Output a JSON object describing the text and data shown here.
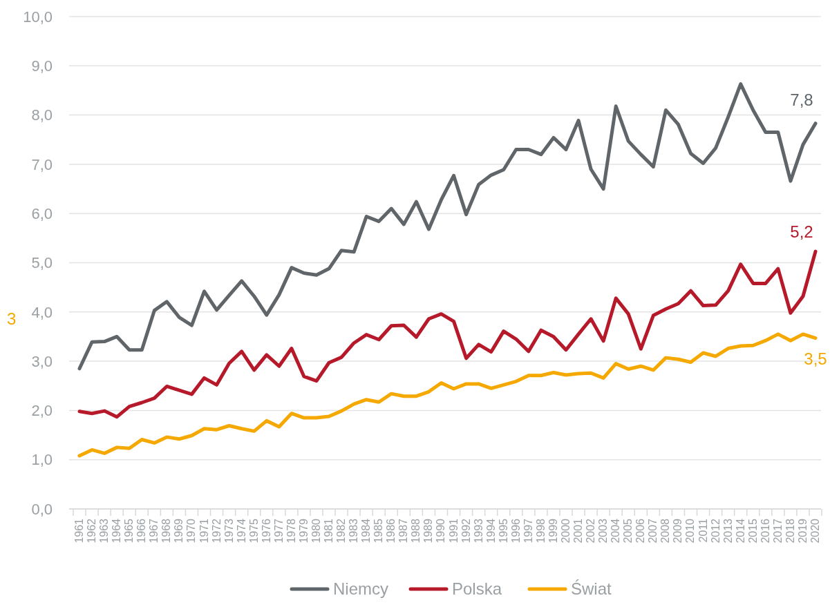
{
  "chart_data": {
    "type": "line",
    "categories": [
      "1961",
      "1962",
      "1963",
      "1964",
      "1965",
      "1966",
      "1967",
      "1968",
      "1969",
      "1970",
      "1971",
      "1972",
      "1973",
      "1974",
      "1975",
      "1976",
      "1977",
      "1978",
      "1979",
      "1980",
      "1981",
      "1982",
      "1983",
      "1984",
      "1985",
      "1986",
      "1987",
      "1988",
      "1989",
      "1990",
      "1991",
      "1992",
      "1993",
      "1994",
      "1995",
      "1996",
      "1997",
      "1998",
      "1999",
      "2000",
      "2001",
      "2002",
      "2003",
      "2004",
      "2005",
      "2006",
      "2007",
      "2008",
      "2009",
      "2010",
      "2011",
      "2012",
      "2013",
      "2014",
      "2015",
      "2016",
      "2017",
      "2018",
      "2019",
      "2020"
    ],
    "series": [
      {
        "name": "Niemcy",
        "color": "#5f6569",
        "values": [
          2.85,
          3.39,
          3.4,
          3.5,
          3.23,
          3.23,
          4.03,
          4.21,
          3.89,
          3.73,
          4.42,
          4.04,
          4.34,
          4.63,
          4.32,
          3.94,
          4.35,
          4.9,
          4.79,
          4.75,
          4.88,
          5.25,
          5.22,
          5.94,
          5.84,
          6.1,
          5.78,
          6.24,
          5.68,
          6.28,
          6.77,
          5.98,
          6.59,
          6.78,
          6.89,
          7.3,
          7.3,
          7.2,
          7.54,
          7.3,
          7.89,
          6.9,
          6.5,
          8.18,
          7.47,
          7.2,
          6.95,
          8.1,
          7.81,
          7.22,
          7.02,
          7.33,
          7.96,
          8.63,
          8.1,
          7.65,
          7.65,
          6.66,
          7.4,
          7.83
        ],
        "value_labels": [
          null,
          null,
          null,
          null,
          null,
          null,
          null,
          null,
          null,
          null,
          null,
          null,
          null,
          null,
          null,
          null,
          null,
          null,
          null,
          null,
          null,
          null,
          null,
          null,
          null,
          null,
          null,
          null,
          null,
          null,
          null,
          null,
          null,
          null,
          null,
          null,
          null,
          null,
          null,
          null,
          null,
          null,
          null,
          null,
          null,
          null,
          null,
          null,
          null,
          null,
          null,
          null,
          null,
          null,
          null,
          null,
          null,
          null,
          null,
          "7,8"
        ]
      },
      {
        "name": "Polska",
        "color": "#b5192a",
        "values": [
          1.98,
          1.94,
          1.99,
          1.87,
          2.08,
          2.16,
          2.25,
          2.49,
          2.41,
          2.33,
          2.66,
          2.52,
          2.96,
          3.2,
          2.82,
          3.13,
          2.9,
          3.26,
          2.69,
          2.6,
          2.97,
          3.08,
          3.37,
          3.54,
          3.44,
          3.72,
          3.73,
          3.49,
          3.86,
          3.96,
          3.81,
          3.06,
          3.34,
          3.19,
          3.61,
          3.45,
          3.2,
          3.63,
          3.5,
          3.23,
          3.55,
          3.86,
          3.41,
          4.28,
          3.96,
          3.25,
          3.93,
          4.06,
          4.17,
          4.43,
          4.13,
          4.14,
          4.43,
          4.97,
          4.58,
          4.58,
          4.88,
          3.98,
          4.32,
          5.23
        ],
        "value_labels": [
          null,
          null,
          null,
          null,
          null,
          null,
          null,
          null,
          null,
          null,
          null,
          null,
          null,
          null,
          null,
          null,
          null,
          null,
          null,
          null,
          null,
          null,
          null,
          null,
          null,
          null,
          null,
          null,
          null,
          null,
          null,
          null,
          null,
          null,
          null,
          null,
          null,
          null,
          null,
          null,
          null,
          null,
          null,
          null,
          null,
          null,
          null,
          null,
          null,
          null,
          null,
          null,
          null,
          null,
          null,
          null,
          null,
          null,
          null,
          "5,2"
        ]
      },
      {
        "name": "Świat",
        "color": "#f5a800",
        "values": [
          1.08,
          1.2,
          1.13,
          1.25,
          1.23,
          1.41,
          1.34,
          1.46,
          1.42,
          1.49,
          1.63,
          1.61,
          1.69,
          1.63,
          1.58,
          1.79,
          1.67,
          1.94,
          1.85,
          1.85,
          1.88,
          1.99,
          2.13,
          2.22,
          2.17,
          2.34,
          2.29,
          2.29,
          2.38,
          2.56,
          2.44,
          2.54,
          2.54,
          2.45,
          2.52,
          2.59,
          2.71,
          2.71,
          2.77,
          2.72,
          2.75,
          2.76,
          2.66,
          2.95,
          2.84,
          2.9,
          2.82,
          3.07,
          3.04,
          2.98,
          3.17,
          3.1,
          3.26,
          3.31,
          3.32,
          3.42,
          3.55,
          3.42,
          3.55,
          3.47
        ],
        "value_labels": [
          null,
          null,
          null,
          null,
          null,
          null,
          null,
          null,
          null,
          null,
          null,
          null,
          null,
          null,
          null,
          null,
          null,
          null,
          null,
          null,
          null,
          null,
          null,
          null,
          null,
          null,
          null,
          null,
          null,
          null,
          null,
          null,
          null,
          null,
          null,
          null,
          null,
          null,
          null,
          null,
          null,
          null,
          null,
          null,
          null,
          null,
          null,
          null,
          null,
          null,
          null,
          null,
          null,
          null,
          null,
          null,
          null,
          null,
          null,
          "3,5"
        ]
      }
    ],
    "annotations": [
      "3"
    ],
    "ylim": [
      0,
      10
    ],
    "yticks": [
      {
        "value": 0,
        "label": "0,0"
      },
      {
        "value": 1,
        "label": "1,0"
      },
      {
        "value": 2,
        "label": "2,0"
      },
      {
        "value": 3,
        "label": "3,0"
      },
      {
        "value": 4,
        "label": "4,0"
      },
      {
        "value": 5,
        "label": "5,0"
      },
      {
        "value": 6,
        "label": "6,0"
      },
      {
        "value": 7,
        "label": "7,0"
      },
      {
        "value": 8,
        "label": "8,0"
      },
      {
        "value": 9,
        "label": "9,0"
      },
      {
        "value": 10,
        "label": "10,0"
      }
    ],
    "grid": "y",
    "legend": "bottom",
    "marker": "none",
    "line_style": "solid"
  }
}
